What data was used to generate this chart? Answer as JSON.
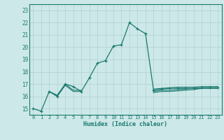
{
  "xlabel": "Humidex (Indice chaleur)",
  "x": [
    0,
    1,
    2,
    3,
    4,
    5,
    6,
    7,
    8,
    9,
    10,
    11,
    12,
    13,
    14,
    15,
    16,
    17,
    18,
    19,
    20,
    21,
    22,
    23
  ],
  "line1": [
    15.0,
    14.8,
    16.4,
    16.0,
    17.0,
    16.8,
    16.4,
    17.5,
    18.7,
    18.9,
    20.1,
    20.2,
    22.0,
    21.5,
    21.1,
    16.5,
    16.6,
    16.65,
    16.65,
    16.65,
    16.65,
    16.7,
    16.7,
    16.7
  ],
  "line2": [
    null,
    null,
    16.4,
    16.1,
    17.0,
    16.5,
    16.5,
    null,
    null,
    null,
    null,
    null,
    null,
    null,
    null,
    16.4,
    16.5,
    16.5,
    16.55,
    16.6,
    16.65,
    16.7,
    16.7,
    16.7
  ],
  "line3": [
    null,
    null,
    16.4,
    16.0,
    16.9,
    16.4,
    16.4,
    null,
    null,
    null,
    null,
    null,
    null,
    null,
    null,
    16.3,
    16.4,
    16.4,
    16.45,
    16.5,
    16.55,
    16.65,
    16.65,
    16.65
  ],
  "line4": [
    null,
    null,
    null,
    null,
    null,
    null,
    null,
    null,
    null,
    null,
    null,
    null,
    null,
    null,
    null,
    16.6,
    16.65,
    16.7,
    16.75,
    16.75,
    16.75,
    16.8,
    16.8,
    16.8
  ],
  "main_color": "#1a7a6e",
  "bg_color": "#cde8e8",
  "grid_color": "#b0d0d0",
  "ylim": [
    14.5,
    23.5
  ],
  "xlim": [
    -0.5,
    23.5
  ],
  "yticks": [
    15,
    16,
    17,
    18,
    19,
    20,
    21,
    22,
    23
  ],
  "xticks": [
    0,
    1,
    2,
    3,
    4,
    5,
    6,
    7,
    8,
    9,
    10,
    11,
    12,
    13,
    14,
    15,
    16,
    17,
    18,
    19,
    20,
    21,
    22,
    23
  ]
}
